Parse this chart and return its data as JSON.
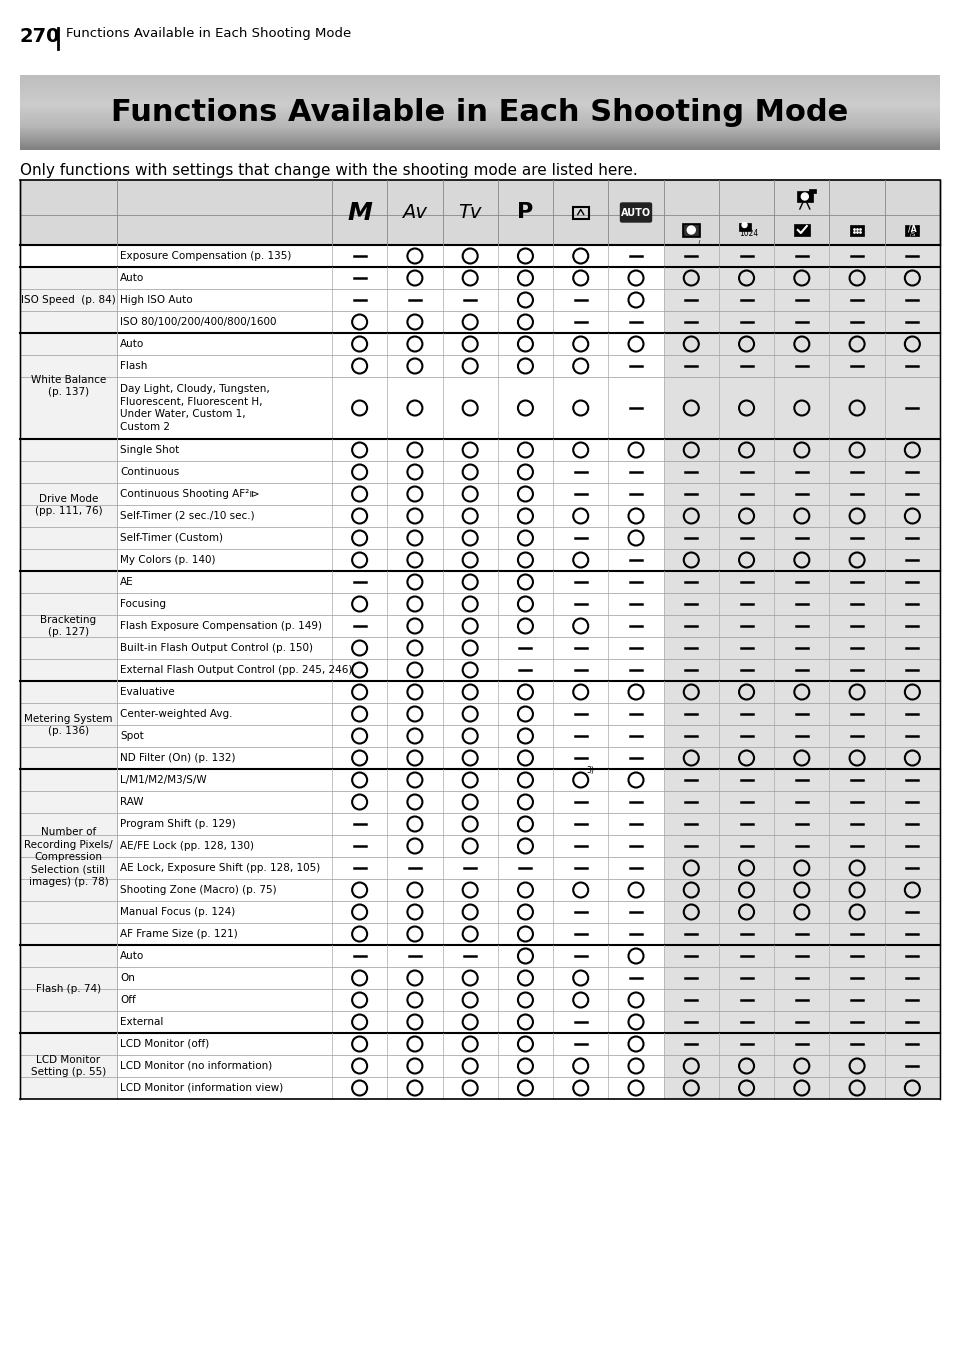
{
  "page_number": "270",
  "page_header": "Functions Available in Each Shooting Mode",
  "banner_title": "Functions Available in Each Shooting Mode",
  "subtitle": "Only functions with settings that change with the shooting mode are listed here.",
  "rows": [
    {
      "group": "",
      "label": "Exposure Compensation (p. 135)",
      "cells": [
        "-",
        "O",
        "O",
        "O",
        "O",
        "-",
        "-",
        "-",
        "-",
        "-",
        "-"
      ]
    },
    {
      "group": "ISO Speed  (p. 84)",
      "label": "Auto",
      "cells": [
        "-",
        "O",
        "O",
        "O",
        "O",
        "O",
        "O",
        "O",
        "O",
        "O",
        "O"
      ]
    },
    {
      "group": "",
      "label": "High ISO Auto",
      "cells": [
        "-",
        "-",
        "-",
        "O",
        "-",
        "O",
        "-",
        "-",
        "-",
        "-",
        "-"
      ]
    },
    {
      "group": "",
      "label": "ISO 80/100/200/400/800/1600",
      "cells": [
        "O",
        "O",
        "O",
        "O",
        "-",
        "-",
        "-",
        "-",
        "-",
        "-",
        "-"
      ]
    },
    {
      "group": "White Balance\n(p. 137)",
      "label": "Auto",
      "cells": [
        "O",
        "O",
        "O",
        "O",
        "O",
        "O",
        "O",
        "O",
        "O",
        "O",
        "O"
      ]
    },
    {
      "group": "",
      "label": "Flash",
      "cells": [
        "O",
        "O",
        "O",
        "O",
        "O",
        "-",
        "-",
        "-",
        "-",
        "-",
        "-"
      ]
    },
    {
      "group": "",
      "label": "Day Light, Cloudy, Tungsten,\nFluorescent, Fluorescent H,\nUnder Water, Custom 1,\nCustom 2",
      "cells": [
        "O",
        "O",
        "O",
        "O",
        "O",
        "-",
        "O",
        "O",
        "O",
        "O",
        "-"
      ]
    },
    {
      "group": "Drive Mode\n(pp. 111, 76)",
      "label": "Single Shot",
      "cells": [
        "O",
        "O",
        "O",
        "O",
        "O",
        "O",
        "O",
        "O",
        "O",
        "O",
        "O"
      ]
    },
    {
      "group": "",
      "label": "Continuous",
      "cells": [
        "O",
        "O",
        "O",
        "O",
        "-",
        "-",
        "-",
        "-",
        "-",
        "-",
        "-"
      ]
    },
    {
      "group": "",
      "label": "Continuous Shooting AF²⧐",
      "cells": [
        "O",
        "O",
        "O",
        "O",
        "-",
        "-",
        "-",
        "-",
        "-",
        "-",
        "-"
      ]
    },
    {
      "group": "",
      "label": "Self-Timer (2 sec./10 sec.)",
      "cells": [
        "O",
        "O",
        "O",
        "O",
        "O",
        "O",
        "O",
        "O",
        "O",
        "O",
        "O"
      ]
    },
    {
      "group": "",
      "label": "Self-Timer (Custom)",
      "cells": [
        "O",
        "O",
        "O",
        "O",
        "-",
        "O",
        "-",
        "-",
        "-",
        "-",
        "-"
      ]
    },
    {
      "group": "",
      "label": "My Colors (p. 140)",
      "cells": [
        "O",
        "O",
        "O",
        "O",
        "O",
        "-",
        "O",
        "O",
        "O",
        "O",
        "-"
      ]
    },
    {
      "group": "Bracketing\n(p. 127)",
      "label": "AE",
      "cells": [
        "-",
        "O",
        "O",
        "O",
        "-",
        "-",
        "-",
        "-",
        "-",
        "-",
        "-"
      ]
    },
    {
      "group": "",
      "label": "Focusing",
      "cells": [
        "O",
        "O",
        "O",
        "O",
        "-",
        "-",
        "-",
        "-",
        "-",
        "-",
        "-"
      ]
    },
    {
      "group": "",
      "label": "Flash Exposure Compensation (p. 149)",
      "cells": [
        "-",
        "O",
        "O",
        "O",
        "O",
        "-",
        "-",
        "-",
        "-",
        "-",
        "-"
      ]
    },
    {
      "group": "",
      "label": "Built-in Flash Output Control (p. 150)",
      "cells": [
        "O",
        "O",
        "O",
        "-",
        "-",
        "-",
        "-",
        "-",
        "-",
        "-",
        "-"
      ]
    },
    {
      "group": "",
      "label": "External Flash Output Control (pp. 245, 246)",
      "cells": [
        "O",
        "O",
        "O",
        "-",
        "-",
        "-",
        "-",
        "-",
        "-",
        "-",
        "-"
      ]
    },
    {
      "group": "Metering System\n(p. 136)",
      "label": "Evaluative",
      "cells": [
        "O",
        "O",
        "O",
        "O",
        "O",
        "O",
        "O",
        "O",
        "O",
        "O",
        "O"
      ]
    },
    {
      "group": "",
      "label": "Center-weighted Avg.",
      "cells": [
        "O",
        "O",
        "O",
        "O",
        "-",
        "-",
        "-",
        "-",
        "-",
        "-",
        "-"
      ]
    },
    {
      "group": "",
      "label": "Spot",
      "cells": [
        "O",
        "O",
        "O",
        "O",
        "-",
        "-",
        "-",
        "-",
        "-",
        "-",
        "-"
      ]
    },
    {
      "group": "",
      "label": "ND Filter (On) (p. 132)",
      "cells": [
        "O",
        "O",
        "O",
        "O",
        "-",
        "-",
        "O",
        "O",
        "O",
        "O",
        "O"
      ]
    },
    {
      "group": "Number of\nRecording Pixels/\nCompression\nSelection (still\nimages) (p. 78)",
      "label": "L/M1/M2/M3/S/W",
      "cells": [
        "O",
        "O",
        "O",
        "O",
        "O3)",
        "O",
        "-",
        "-",
        "-",
        "-",
        "-"
      ]
    },
    {
      "group": "",
      "label": "RAW",
      "cells": [
        "O",
        "O",
        "O",
        "O",
        "-",
        "-",
        "-",
        "-",
        "-",
        "-",
        "-"
      ]
    },
    {
      "group": "",
      "label": "Program Shift (p. 129)",
      "cells": [
        "-",
        "O",
        "O",
        "O",
        "-",
        "-",
        "-",
        "-",
        "-",
        "-",
        "-"
      ]
    },
    {
      "group": "",
      "label": "AE/FE Lock (pp. 128, 130)",
      "cells": [
        "-",
        "O",
        "O",
        "O",
        "-",
        "-",
        "-",
        "-",
        "-",
        "-",
        "-"
      ]
    },
    {
      "group": "",
      "label": "AE Lock, Exposure Shift (pp. 128, 105)",
      "cells": [
        "-",
        "-",
        "-",
        "-",
        "-",
        "-",
        "O",
        "O",
        "O",
        "O",
        "-"
      ]
    },
    {
      "group": "",
      "label": "Shooting Zone (Macro) (p. 75)",
      "cells": [
        "O",
        "O",
        "O",
        "O",
        "O",
        "O",
        "O",
        "O",
        "O",
        "O",
        "O"
      ]
    },
    {
      "group": "",
      "label": "Manual Focus (p. 124)",
      "cells": [
        "O",
        "O",
        "O",
        "O",
        "-",
        "-",
        "O",
        "O",
        "O",
        "O",
        "-"
      ]
    },
    {
      "group": "",
      "label": "AF Frame Size (p. 121)",
      "cells": [
        "O",
        "O",
        "O",
        "O",
        "-",
        "-",
        "-",
        "-",
        "-",
        "-",
        "-"
      ]
    },
    {
      "group": "Flash (p. 74)",
      "label": "Auto",
      "cells": [
        "-",
        "-",
        "-",
        "O",
        "-",
        "O",
        "-",
        "-",
        "-",
        "-",
        "-"
      ]
    },
    {
      "group": "",
      "label": "On",
      "cells": [
        "O",
        "O",
        "O",
        "O",
        "O",
        "-",
        "-",
        "-",
        "-",
        "-",
        "-"
      ]
    },
    {
      "group": "",
      "label": "Off",
      "cells": [
        "O",
        "O",
        "O",
        "O",
        "O",
        "O",
        "-",
        "-",
        "-",
        "-",
        "-"
      ]
    },
    {
      "group": "",
      "label": "External",
      "cells": [
        "O",
        "O",
        "O",
        "O",
        "-",
        "O",
        "-",
        "-",
        "-",
        "-",
        "-"
      ]
    },
    {
      "group": "LCD Monitor\nSetting (p. 55)",
      "label": "LCD Monitor (off)",
      "cells": [
        "O",
        "O",
        "O",
        "O",
        "-",
        "O",
        "-",
        "-",
        "-",
        "-",
        "-"
      ]
    },
    {
      "group": "",
      "label": "LCD Monitor (no information)",
      "cells": [
        "O",
        "O",
        "O",
        "O",
        "O",
        "O",
        "O",
        "O",
        "O",
        "O",
        "-"
      ]
    },
    {
      "group": "",
      "label": "LCD Monitor (information view)",
      "cells": [
        "O",
        "O",
        "O",
        "O",
        "O",
        "O",
        "O",
        "O",
        "O",
        "O",
        "O"
      ]
    }
  ]
}
